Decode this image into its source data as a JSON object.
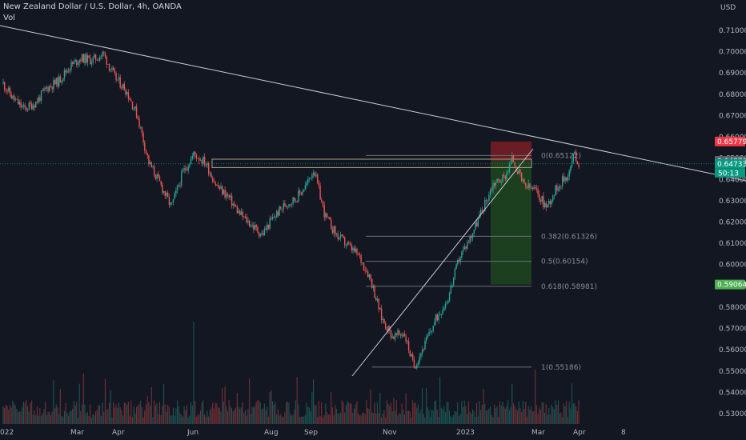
{
  "header": {
    "symbol_title": "New Zealand Dollar / U.S. Dollar, 4h, OANDA",
    "volume_label": "Vol"
  },
  "price_axis": {
    "currency": "USD",
    "ticks": [
      "0.71000",
      "0.70000",
      "0.69000",
      "0.68000",
      "0.67000",
      "0.66000",
      "0.65000",
      "0.64000",
      "0.63000",
      "0.62000",
      "0.61000",
      "0.60000",
      "0.59000",
      "0.58000",
      "0.57000",
      "0.56000",
      "0.55000",
      "0.54000",
      "0.53000"
    ]
  },
  "time_axis": {
    "labels": [
      "022",
      "Mar",
      "Apr",
      "Jun",
      "Aug",
      "Sep",
      "Nov",
      "2023",
      "Mar",
      "Apr",
      "8"
    ]
  },
  "price_tags": {
    "stop": "0.65779",
    "entry": "0.64876",
    "last": "0.64733",
    "countdown": "50:13",
    "target": "0.59064"
  },
  "fib_levels": [
    {
      "label": "0(0.65122)",
      "price": 0.65122
    },
    {
      "label": "0.382(0.61326)",
      "price": 0.61326
    },
    {
      "label": "0.5(0.60154)",
      "price": 0.60154
    },
    {
      "label": "0.618(0.58981)",
      "price": 0.58981
    },
    {
      "label": "1(0.55186)",
      "price": 0.55186
    }
  ],
  "colors": {
    "background": "#131722",
    "up": "#26a69a",
    "down": "#ef5350",
    "stop_zone": "#7a1f26",
    "target_zone": "#1e4620",
    "trendline": "#c9ccd4",
    "last_tag": "#089981",
    "stop_tag": "#f23645",
    "target_tag": "#4caf50",
    "entry_tag": "#5d606b"
  },
  "chart_data": {
    "type": "candlestick",
    "title": "New Zealand Dollar / U.S. Dollar, 4h, OANDA",
    "y_unit": "USD",
    "ylim": [
      0.527,
      0.716
    ],
    "price_path": [
      [
        "2022-02-01",
        0.685
      ],
      [
        "2022-02-07",
        0.678
      ],
      [
        "2022-02-14",
        0.673
      ],
      [
        "2022-02-21",
        0.676
      ],
      [
        "2022-02-28",
        0.683
      ],
      [
        "2022-03-07",
        0.686
      ],
      [
        "2022-03-14",
        0.693
      ],
      [
        "2022-03-21",
        0.697
      ],
      [
        "2022-03-28",
        0.696
      ],
      [
        "2022-04-04",
        0.699
      ],
      [
        "2022-04-11",
        0.688
      ],
      [
        "2022-04-18",
        0.682
      ],
      [
        "2022-04-25",
        0.67
      ],
      [
        "2022-05-02",
        0.648
      ],
      [
        "2022-05-09",
        0.638
      ],
      [
        "2022-05-16",
        0.627
      ],
      [
        "2022-05-23",
        0.643
      ],
      [
        "2022-05-30",
        0.652
      ],
      [
        "2022-06-06",
        0.648
      ],
      [
        "2022-06-13",
        0.637
      ],
      [
        "2022-06-20",
        0.632
      ],
      [
        "2022-06-27",
        0.624
      ],
      [
        "2022-07-04",
        0.619
      ],
      [
        "2022-07-11",
        0.614
      ],
      [
        "2022-07-18",
        0.622
      ],
      [
        "2022-07-25",
        0.628
      ],
      [
        "2022-08-01",
        0.631
      ],
      [
        "2022-08-08",
        0.638
      ],
      [
        "2022-08-12",
        0.645
      ],
      [
        "2022-08-19",
        0.623
      ],
      [
        "2022-08-26",
        0.614
      ],
      [
        "2022-09-02",
        0.609
      ],
      [
        "2022-09-09",
        0.604
      ],
      [
        "2022-09-16",
        0.594
      ],
      [
        "2022-09-23",
        0.575
      ],
      [
        "2022-09-30",
        0.566
      ],
      [
        "2022-10-07",
        0.568
      ],
      [
        "2022-10-13",
        0.5519
      ],
      [
        "2022-10-20",
        0.563
      ],
      [
        "2022-10-27",
        0.575
      ],
      [
        "2022-11-03",
        0.584
      ],
      [
        "2022-11-10",
        0.603
      ],
      [
        "2022-11-17",
        0.613
      ],
      [
        "2022-11-24",
        0.625
      ],
      [
        "2022-12-01",
        0.638
      ],
      [
        "2022-12-08",
        0.641
      ],
      [
        "2022-12-13",
        0.65
      ],
      [
        "2022-12-20",
        0.637
      ],
      [
        "2022-12-27",
        0.635
      ],
      [
        "2023-01-03",
        0.627
      ],
      [
        "2023-01-10",
        0.637
      ],
      [
        "2023-01-17",
        0.643
      ],
      [
        "2023-01-20",
        0.652
      ],
      [
        "2023-01-23",
        0.6473
      ]
    ],
    "horizontal_zone": [
      0.6456,
      0.6495
    ],
    "trendlines": [
      {
        "name": "descending resistance"
      },
      {
        "name": "ascending support"
      }
    ],
    "position": {
      "side": "short",
      "stop": 0.65779,
      "entry": 0.64876,
      "target": 0.59064
    }
  }
}
